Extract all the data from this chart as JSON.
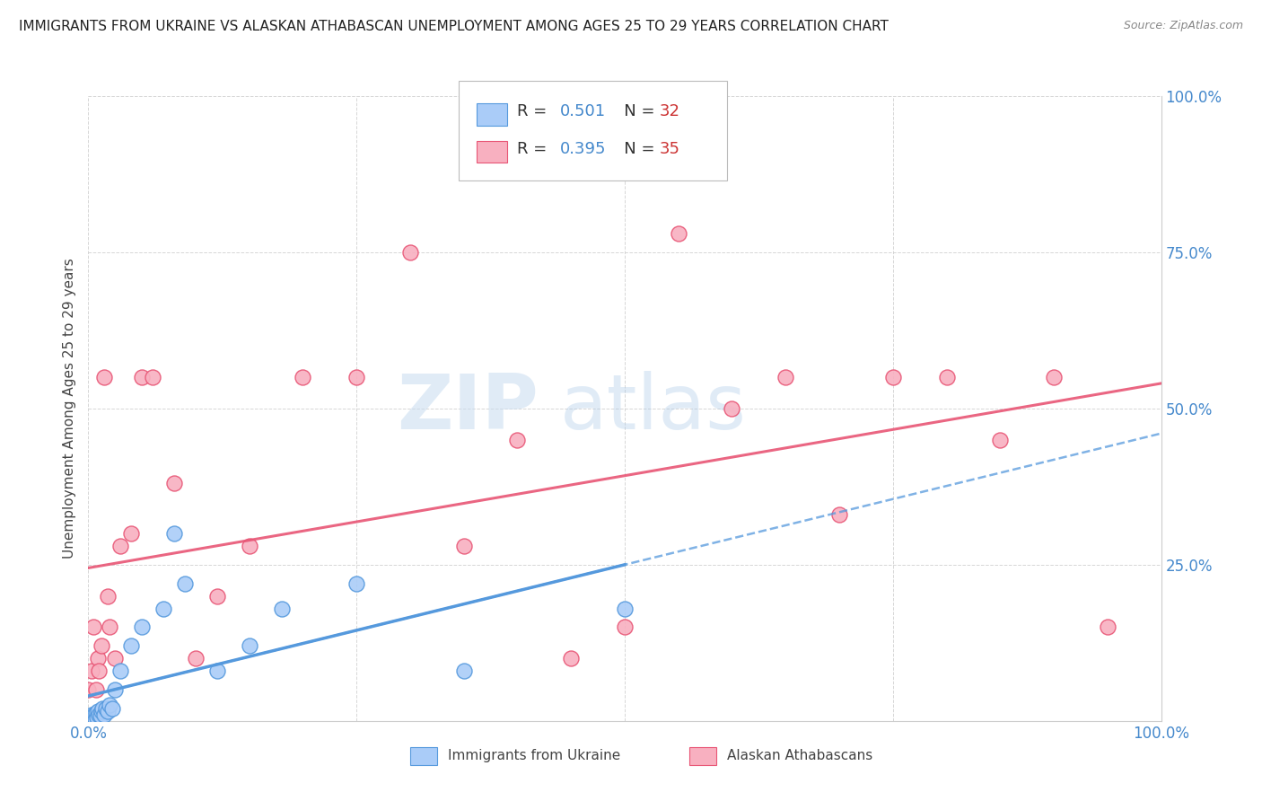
{
  "title": "IMMIGRANTS FROM UKRAINE VS ALASKAN ATHABASCAN UNEMPLOYMENT AMONG AGES 25 TO 29 YEARS CORRELATION CHART",
  "source": "Source: ZipAtlas.com",
  "ylabel": "Unemployment Among Ages 25 to 29 years",
  "xlim": [
    0,
    1.0
  ],
  "ylim": [
    0,
    1.0
  ],
  "ukraine_R": 0.501,
  "ukraine_N": 32,
  "athabascan_R": 0.395,
  "athabascan_N": 35,
  "ukraine_color": "#aaccf8",
  "ukraine_edge_color": "#5599dd",
  "athabascan_color": "#f8b0c0",
  "athabascan_edge_color": "#e85575",
  "ukraine_line_color": "#5599dd",
  "athabascan_line_color": "#e85575",
  "ukraine_scatter_x": [
    0.0,
    0.001,
    0.002,
    0.003,
    0.004,
    0.005,
    0.006,
    0.007,
    0.008,
    0.009,
    0.01,
    0.011,
    0.012,
    0.013,
    0.015,
    0.016,
    0.018,
    0.02,
    0.022,
    0.025,
    0.03,
    0.04,
    0.05,
    0.07,
    0.08,
    0.09,
    0.12,
    0.15,
    0.18,
    0.25,
    0.35,
    0.5
  ],
  "ukraine_scatter_y": [
    0.0,
    0.005,
    0.002,
    0.01,
    0.005,
    0.008,
    0.003,
    0.012,
    0.005,
    0.015,
    0.01,
    0.008,
    0.015,
    0.02,
    0.01,
    0.02,
    0.015,
    0.025,
    0.02,
    0.05,
    0.08,
    0.12,
    0.15,
    0.18,
    0.3,
    0.22,
    0.08,
    0.12,
    0.18,
    0.22,
    0.08,
    0.18
  ],
  "athabascan_scatter_x": [
    0.0,
    0.003,
    0.005,
    0.007,
    0.009,
    0.01,
    0.012,
    0.015,
    0.018,
    0.02,
    0.025,
    0.03,
    0.04,
    0.05,
    0.06,
    0.08,
    0.1,
    0.12,
    0.15,
    0.2,
    0.25,
    0.3,
    0.35,
    0.4,
    0.45,
    0.5,
    0.55,
    0.6,
    0.65,
    0.7,
    0.75,
    0.8,
    0.85,
    0.9,
    0.95
  ],
  "athabascan_scatter_y": [
    0.05,
    0.08,
    0.15,
    0.05,
    0.1,
    0.08,
    0.12,
    0.55,
    0.2,
    0.15,
    0.1,
    0.28,
    0.3,
    0.55,
    0.55,
    0.38,
    0.1,
    0.2,
    0.28,
    0.55,
    0.55,
    0.75,
    0.28,
    0.45,
    0.1,
    0.15,
    0.78,
    0.5,
    0.55,
    0.33,
    0.55,
    0.55,
    0.45,
    0.55,
    0.15
  ],
  "watermark_zip": "ZIP",
  "watermark_atlas": "atlas",
  "background_color": "#ffffff",
  "grid_color": "#cccccc",
  "title_color": "#222222",
  "axis_label_color": "#444444",
  "tick_color": "#4488cc",
  "r_color": "#4488cc",
  "n_color": "#cc3333"
}
